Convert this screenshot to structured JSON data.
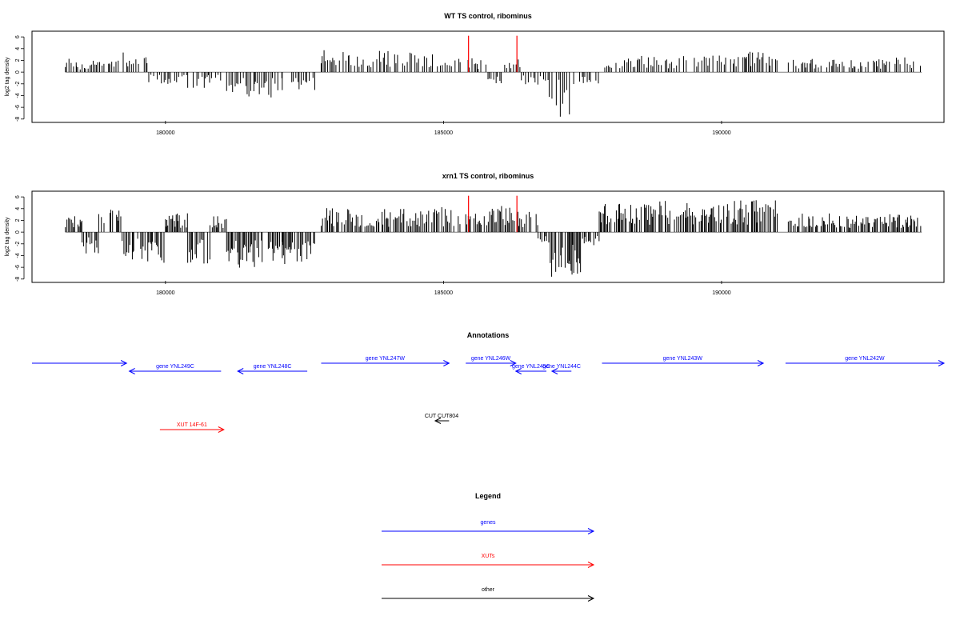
{
  "chart_data": [
    {
      "type": "bar",
      "title": "WT TS control, ribominus",
      "ylabel": "log2 tag density",
      "xlabel": "",
      "xlim": [
        177600,
        194000
      ],
      "ylim": [
        -8.3,
        6.7
      ],
      "x_ticks": [
        180000,
        185000,
        190000
      ],
      "y_ticks": [
        6,
        4,
        2,
        0,
        -2,
        -4,
        -6,
        -8
      ],
      "bar_color": "#000000",
      "marker_color": "#ff0000",
      "markers": [
        185450,
        186320
      ],
      "profile": [
        {
          "from": 178200,
          "to": 178400,
          "mean": 1.6
        },
        {
          "from": 178400,
          "to": 178700,
          "mean": 1.2
        },
        {
          "from": 178700,
          "to": 179000,
          "mean": 1.6
        },
        {
          "from": 179000,
          "to": 179350,
          "mean": 2.2
        },
        {
          "from": 179350,
          "to": 179700,
          "mean": 1.6
        },
        {
          "from": 179700,
          "to": 180000,
          "mean": -1.2
        },
        {
          "from": 180000,
          "to": 180400,
          "mean": -1.4
        },
        {
          "from": 180400,
          "to": 180750,
          "mean": -1.8
        },
        {
          "from": 180750,
          "to": 181000,
          "mean": -1.2
        },
        {
          "from": 181100,
          "to": 181600,
          "mean": -2.6
        },
        {
          "from": 181600,
          "to": 182100,
          "mean": -2.9
        },
        {
          "from": 182100,
          "to": 182700,
          "mean": -2.4
        },
        {
          "from": 182800,
          "to": 183300,
          "mean": 2.4
        },
        {
          "from": 183300,
          "to": 183800,
          "mean": 2.0
        },
        {
          "from": 183800,
          "to": 184300,
          "mean": 2.3
        },
        {
          "from": 184300,
          "to": 184800,
          "mean": 2.2
        },
        {
          "from": 184800,
          "to": 185300,
          "mean": 2.5
        },
        {
          "from": 185400,
          "to": 185800,
          "mean": 1.5
        },
        {
          "from": 185800,
          "to": 186100,
          "mean": -1.2
        },
        {
          "from": 186100,
          "to": 186400,
          "mean": 1.6
        },
        {
          "from": 186400,
          "to": 186700,
          "mean": -1.4
        },
        {
          "from": 186700,
          "to": 186900,
          "mean": -1.0
        },
        {
          "from": 186900,
          "to": 187100,
          "mean": -3.6
        },
        {
          "from": 187100,
          "to": 187400,
          "mean": -5.2
        },
        {
          "from": 187400,
          "to": 187800,
          "mean": -1.6
        },
        {
          "from": 187900,
          "to": 188500,
          "mean": 1.5
        },
        {
          "from": 188500,
          "to": 189100,
          "mean": 1.8
        },
        {
          "from": 189100,
          "to": 189700,
          "mean": 1.9
        },
        {
          "from": 189700,
          "to": 190300,
          "mean": 1.9
        },
        {
          "from": 190300,
          "to": 191000,
          "mean": 2.2
        },
        {
          "from": 191200,
          "to": 192000,
          "mean": 1.5
        },
        {
          "from": 192000,
          "to": 192800,
          "mean": 1.4
        },
        {
          "from": 192800,
          "to": 193600,
          "mean": 1.6
        }
      ]
    },
    {
      "type": "bar",
      "title": "xrn1 TS control, ribominus",
      "ylabel": "log2 tag density",
      "xlabel": "",
      "xlim": [
        177600,
        194000
      ],
      "ylim": [
        -8.3,
        6.7
      ],
      "x_ticks": [
        180000,
        185000,
        190000
      ],
      "y_ticks": [
        6,
        4,
        2,
        0,
        -2,
        -4,
        -6,
        -8
      ],
      "bar_color": "#000000",
      "marker_color": "#ff0000",
      "markers": [
        185450,
        186320
      ],
      "profile": [
        {
          "from": 178200,
          "to": 178500,
          "mean": 2.0
        },
        {
          "from": 178500,
          "to": 178800,
          "mean": -2.5
        },
        {
          "from": 178800,
          "to": 179200,
          "mean": 2.4
        },
        {
          "from": 179200,
          "to": 179600,
          "mean": -3.0
        },
        {
          "from": 179600,
          "to": 180000,
          "mean": -3.4
        },
        {
          "from": 180000,
          "to": 180400,
          "mean": 2.0
        },
        {
          "from": 180400,
          "to": 180800,
          "mean": -3.6
        },
        {
          "from": 180800,
          "to": 181100,
          "mean": 1.8
        },
        {
          "from": 181100,
          "to": 181600,
          "mean": -3.8
        },
        {
          "from": 181600,
          "to": 182100,
          "mean": -4.0
        },
        {
          "from": 182100,
          "to": 182700,
          "mean": -3.5
        },
        {
          "from": 182800,
          "to": 183300,
          "mean": 2.6
        },
        {
          "from": 183300,
          "to": 183800,
          "mean": 2.4
        },
        {
          "from": 183800,
          "to": 184300,
          "mean": 2.5
        },
        {
          "from": 184300,
          "to": 184800,
          "mean": 2.4
        },
        {
          "from": 184800,
          "to": 185300,
          "mean": 2.7
        },
        {
          "from": 185400,
          "to": 185900,
          "mean": 2.6
        },
        {
          "from": 185900,
          "to": 186400,
          "mean": 2.9
        },
        {
          "from": 186400,
          "to": 186700,
          "mean": 2.4
        },
        {
          "from": 186700,
          "to": 186900,
          "mean": -1.2
        },
        {
          "from": 186900,
          "to": 187200,
          "mean": -5.2
        },
        {
          "from": 187200,
          "to": 187500,
          "mean": -4.6
        },
        {
          "from": 187500,
          "to": 187800,
          "mean": -1.6
        },
        {
          "from": 187800,
          "to": 188400,
          "mean": 3.2
        },
        {
          "from": 188400,
          "to": 189000,
          "mean": 3.4
        },
        {
          "from": 189000,
          "to": 189600,
          "mean": 3.2
        },
        {
          "from": 189600,
          "to": 190200,
          "mean": 3.3
        },
        {
          "from": 190200,
          "to": 191000,
          "mean": 3.5
        },
        {
          "from": 191200,
          "to": 192000,
          "mean": 2.0
        },
        {
          "from": 192000,
          "to": 192800,
          "mean": 1.8
        },
        {
          "from": 192800,
          "to": 193600,
          "mean": 2.0
        }
      ]
    }
  ],
  "annotations": {
    "title": "Annotations",
    "features": [
      {
        "label": "",
        "start": 177600,
        "end": 179300,
        "strand": "+",
        "row": 1,
        "class": "genes"
      },
      {
        "label": "gene YNL249C",
        "start": 179350,
        "end": 181000,
        "strand": "-",
        "row": 2,
        "class": "genes"
      },
      {
        "label": "gene YNL248C",
        "start": 181300,
        "end": 182550,
        "strand": "-",
        "row": 2,
        "class": "genes"
      },
      {
        "label": "gene YNL247W",
        "start": 182800,
        "end": 185100,
        "strand": "+",
        "row": 1,
        "class": "genes"
      },
      {
        "label": "gene YNL246W",
        "start": 185400,
        "end": 186300,
        "strand": "+",
        "row": 1,
        "class": "genes"
      },
      {
        "label": "gene YNL245C",
        "start": 186300,
        "end": 186850,
        "strand": "-",
        "row": 2,
        "class": "genes"
      },
      {
        "label": "gene YNL244C",
        "start": 186950,
        "end": 187300,
        "strand": "-",
        "row": 2,
        "class": "genes"
      },
      {
        "label": "gene YNL243W",
        "start": 187850,
        "end": 190750,
        "strand": "+",
        "row": 1,
        "class": "genes"
      },
      {
        "label": "gene YNL242W",
        "start": 191150,
        "end": 194000,
        "strand": "+",
        "row": 1,
        "class": "genes"
      },
      {
        "label": "XUT 14F-61",
        "start": 179900,
        "end": 181050,
        "strand": "+",
        "row": 4,
        "class": "XUTs"
      },
      {
        "label": "CUT CUT804",
        "start": 184850,
        "end": 185100,
        "strand": "-",
        "row": 3,
        "class": "other"
      }
    ],
    "colors": {
      "genes": "#0000ff",
      "XUTs": "#ff0000",
      "other": "#000000"
    }
  },
  "legend": {
    "title": "Legend",
    "items": [
      {
        "label": "genes",
        "color": "#0000ff"
      },
      {
        "label": "XUTs",
        "color": "#ff0000"
      },
      {
        "label": "other",
        "color": "#000000"
      }
    ]
  }
}
